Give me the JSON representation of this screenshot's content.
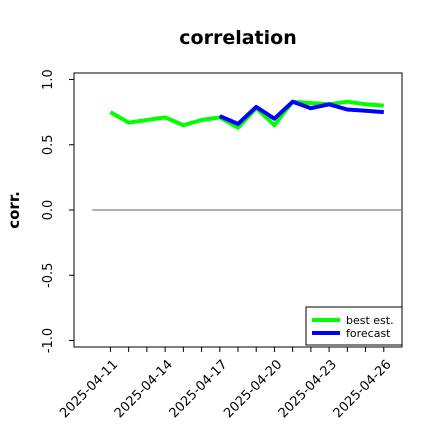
{
  "chart_data": {
    "type": "line",
    "title": "correlation",
    "xlabel": "",
    "ylabel": "corr.",
    "ylim": [
      -1.05,
      1.05
    ],
    "yticks": [
      -1.0,
      -0.5,
      0.0,
      0.5,
      1.0
    ],
    "ytick_labels": [
      "-1.0",
      "-0.5",
      "0.0",
      "0.5",
      "1.0"
    ],
    "xlim": [
      "2025-04-09",
      "2025-04-27"
    ],
    "xticks": [
      "2025-04-11",
      "2025-04-12",
      "2025-04-13",
      "2025-04-14",
      "2025-04-15",
      "2025-04-16",
      "2025-04-17",
      "2025-04-18",
      "2025-04-19",
      "2025-04-20",
      "2025-04-21",
      "2025-04-22",
      "2025-04-23",
      "2025-04-24",
      "2025-04-25",
      "2025-04-26"
    ],
    "xtick_labels": [
      {
        "date": "2025-04-11",
        "label": "2025-04-11",
        "color": "#000000"
      },
      {
        "date": "2025-04-14",
        "label": "2025-04-14",
        "color": "#000000"
      },
      {
        "date": "2025-04-17",
        "label": "2025-04-17",
        "color": "#228b22"
      },
      {
        "date": "2025-04-20",
        "label": "2025-04-20",
        "color": "#000000"
      },
      {
        "date": "2025-04-23",
        "label": "2025-04-23",
        "color": "#000000"
      },
      {
        "date": "2025-04-26",
        "label": "2025-04-26",
        "color": "#000000"
      }
    ],
    "zero_line": {
      "y": 0.0,
      "x_start": "2025-04-10",
      "x_end": "2025-04-27",
      "color": "#808080"
    },
    "grid": false,
    "legend_position": "lower-right",
    "series": [
      {
        "name": "best est.",
        "color": "#00ff00",
        "x": [
          "2025-04-11",
          "2025-04-12",
          "2025-04-13",
          "2025-04-14",
          "2025-04-15",
          "2025-04-16",
          "2025-04-17",
          "2025-04-18",
          "2025-04-19",
          "2025-04-20",
          "2025-04-21",
          "2025-04-22",
          "2025-04-23",
          "2025-04-24",
          "2025-04-25",
          "2025-04-26"
        ],
        "values": [
          0.75,
          0.67,
          0.69,
          0.71,
          0.65,
          0.69,
          0.71,
          0.63,
          0.78,
          0.65,
          0.83,
          0.82,
          0.81,
          0.83,
          0.81,
          0.8
        ]
      },
      {
        "name": "forecast",
        "color": "#0000ff",
        "x": [
          "2025-04-17",
          "2025-04-18",
          "2025-04-19",
          "2025-04-20",
          "2025-04-21",
          "2025-04-22",
          "2025-04-23",
          "2025-04-24",
          "2025-04-25",
          "2025-04-26"
        ],
        "values": [
          0.72,
          0.66,
          0.79,
          0.7,
          0.83,
          0.78,
          0.81,
          0.77,
          0.76,
          0.75
        ]
      }
    ]
  }
}
